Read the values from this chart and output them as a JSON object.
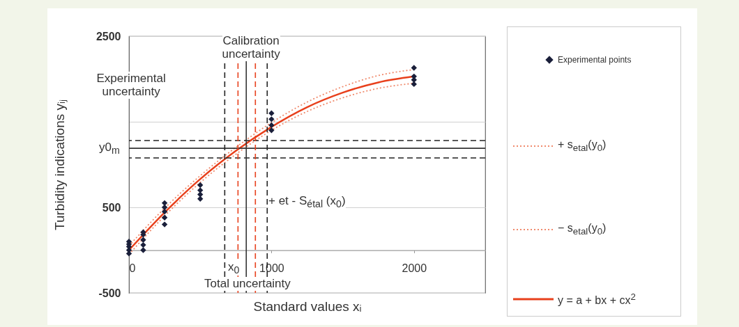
{
  "chart_data": {
    "type": "scatter",
    "xlabel": "Standard values xᵢ",
    "ylabel": "Turbidity indications yᵢⱼ",
    "xlim": [
      0,
      2500
    ],
    "ylim": [
      -500,
      2500
    ],
    "xticks": [
      0,
      1000,
      2000
    ],
    "yticks": [
      -500,
      {
        "value": 0,
        "label": null
      },
      500,
      {
        "value": 1500,
        "label": null
      },
      2500
    ],
    "grid": "y",
    "legend": "right",
    "series": [
      {
        "name": "Experimental points",
        "marker": "diamond",
        "color": "#1a1f3a",
        "x": [
          0,
          0,
          0,
          0,
          0,
          100,
          100,
          100,
          100,
          100,
          250,
          250,
          250,
          250,
          250,
          500,
          500,
          500,
          500,
          1000,
          1000,
          1000,
          1000,
          2000,
          2000,
          2000,
          2000
        ],
        "values": [
          -40,
          0,
          40,
          70,
          100,
          0,
          60,
          120,
          180,
          210,
          300,
          380,
          450,
          500,
          550,
          600,
          650,
          700,
          760,
          1400,
          1460,
          1530,
          1600,
          1940,
          1990,
          2030,
          2130
        ]
      },
      {
        "name": "+ s$_{etal}$(y$_{0}$)",
        "type": "line",
        "line_style": "dotted",
        "color": "#f08a6c",
        "x": [
          0,
          250,
          500,
          750,
          1000,
          1250,
          1500,
          1750,
          2000
        ],
        "values": [
          50,
          490,
          870,
          1200,
          1490,
          1730,
          1910,
          2040,
          2110
        ]
      },
      {
        "name": "− s$_{etal}$(y$_{0}$)",
        "type": "line",
        "line_style": "dotted",
        "color": "#f08a6c",
        "x": [
          0,
          250,
          500,
          750,
          1000,
          1250,
          1500,
          1750,
          2000
        ],
        "values": [
          -50,
          400,
          790,
          1120,
          1400,
          1620,
          1780,
          1890,
          1950
        ]
      },
      {
        "name": "y = a + bx + cx$^{2}$",
        "type": "line",
        "line_style": "solid",
        "color": "#e8401c",
        "x": [
          0,
          250,
          500,
          750,
          1000,
          1250,
          1500,
          1750,
          2000
        ],
        "values": [
          0,
          440,
          830,
          1160,
          1440,
          1670,
          1840,
          1960,
          2030
        ]
      }
    ],
    "ref_lines": [
      {
        "axis": "y",
        "value": 1190,
        "color": "#333333",
        "line_style": "solid"
      },
      {
        "axis": "y",
        "value": 1280,
        "color": "#222222",
        "line_style": "dashed"
      },
      {
        "axis": "y",
        "value": 1077,
        "color": "#222222",
        "line_style": "dashed"
      },
      {
        "axis": "x",
        "value": 823,
        "color": "#333333",
        "line_style": "solid"
      },
      {
        "axis": "x",
        "value": 765,
        "color": "#e8401c",
        "line_style": "dashed"
      },
      {
        "axis": "x",
        "value": 887,
        "color": "#e8401c",
        "line_style": "dashed"
      },
      {
        "axis": "x",
        "value": 672,
        "color": "#222222",
        "line_style": "dashed"
      },
      {
        "axis": "x",
        "value": 970,
        "color": "#222222",
        "line_style": "dashed"
      }
    ],
    "annotations": [
      "Calibration\nuncertainty",
      "Experimental\nuncertainty",
      "y0$_{m}$",
      "+ et - S$_{étal}$ (x$_{0}$)",
      "x$_{0}$",
      "Total uncertainty"
    ]
  }
}
